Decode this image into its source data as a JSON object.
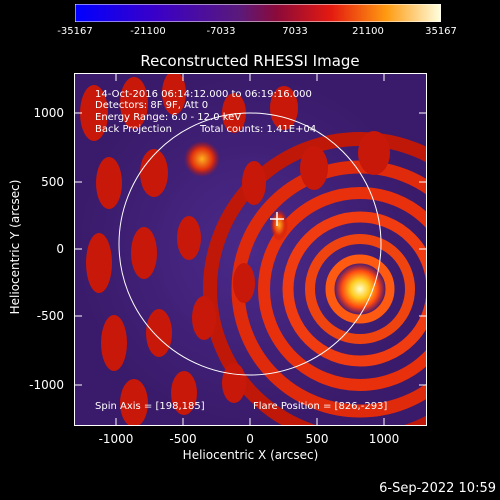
{
  "colorbar": {
    "ticks": [
      "-35167",
      "-21100",
      "-7033",
      "7033",
      "21100",
      "35167"
    ]
  },
  "plot": {
    "title": "Reconstructed RHESSI Image",
    "xlabel": "Heliocentric X (arcsec)",
    "ylabel": "Heliocentric Y (arcsec)",
    "xticks": [
      "-1000",
      "-500",
      "0",
      "500",
      "1000"
    ],
    "yticks": [
      "1000",
      "500",
      "0",
      "-500",
      "-1000"
    ]
  },
  "overlay": {
    "time_range": "14-Oct-2016 06:14:12.000 to 06:19:16.000",
    "detectors": "Detectors: 8F 9F, Att 0",
    "energy": "Energy Range: 6.0 - 12.0 keV",
    "method": "Back Projection",
    "counts": "Total counts: 1.41E+04",
    "spin_axis": "Spin Axis = [198,185]",
    "flare_position": "Flare Position = [826,-293]"
  },
  "footer": {
    "timestamp": "6-Sep-2022 10:59"
  }
}
